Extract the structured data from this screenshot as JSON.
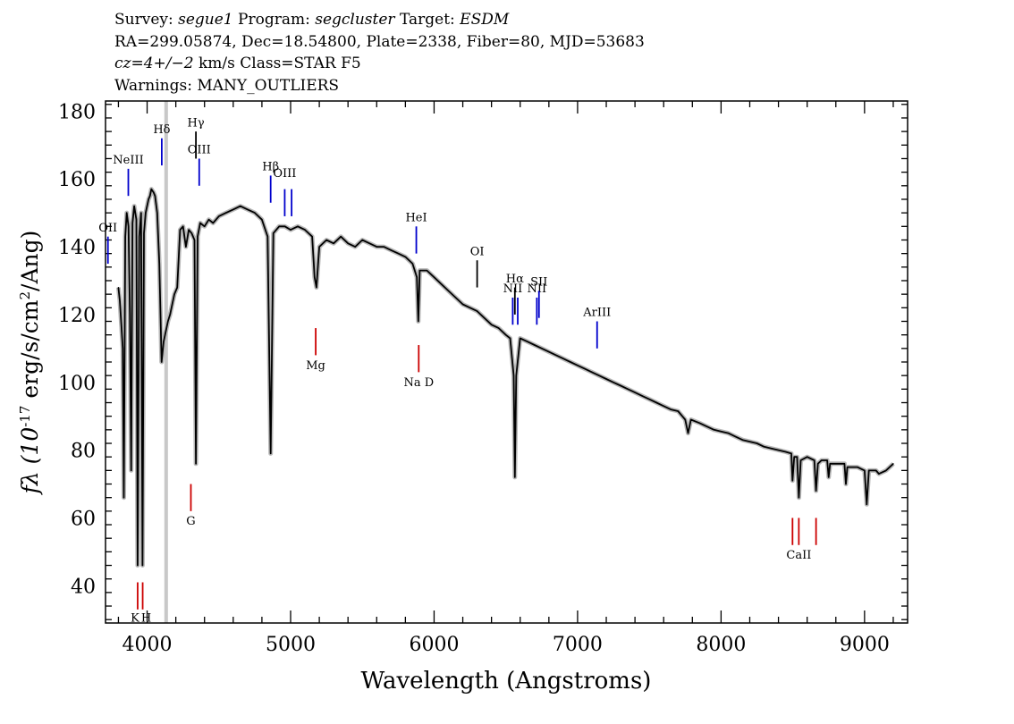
{
  "header": {
    "survey_label": "Survey: ",
    "survey": "segue1",
    "program_label": " Program: ",
    "program": "segcluster",
    "target_label": " Target: ",
    "target": "ESDM",
    "line2": "RA=299.05874, Dec=18.54800, Plate=2338, Fiber=80, MJD=53683",
    "cz_value": "cz=4+/−2",
    "cz_rest": " km/s Class=STAR F5",
    "warnings": "Warnings: MANY_OUTLIERS"
  },
  "chart_data": {
    "type": "line",
    "title": "",
    "xlabel": "Wavelength (Angstroms)",
    "ylabel": "fλ (10⁻¹⁷ erg/s/cm²/Ang)",
    "xlim": [
      3710,
      9300
    ],
    "ylim": [
      29,
      183
    ],
    "xticks": [
      4000,
      5000,
      6000,
      7000,
      8000,
      9000
    ],
    "yticks": [
      40,
      60,
      80,
      100,
      120,
      140,
      160,
      180
    ],
    "grid": false,
    "series": [
      {
        "color": "#000000",
        "points": [
          [
            3800,
            128
          ],
          [
            3810,
            124
          ],
          [
            3820,
            117
          ],
          [
            3830,
            110
          ],
          [
            3838,
            66
          ],
          [
            3848,
            143
          ],
          [
            3858,
            150
          ],
          [
            3870,
            146
          ],
          [
            3880,
            120
          ],
          [
            3889,
            74
          ],
          [
            3898,
            147
          ],
          [
            3910,
            152
          ],
          [
            3925,
            148
          ],
          [
            3934,
            46
          ],
          [
            3945,
            143
          ],
          [
            3958,
            150
          ],
          [
            3968,
            46
          ],
          [
            3978,
            144
          ],
          [
            3990,
            150
          ],
          [
            4000,
            152
          ],
          [
            4010,
            154
          ],
          [
            4020,
            155
          ],
          [
            4030,
            157
          ],
          [
            4045,
            156
          ],
          [
            4055,
            155
          ],
          [
            4070,
            150
          ],
          [
            4085,
            135
          ],
          [
            4101,
            106
          ],
          [
            4115,
            112
          ],
          [
            4130,
            115
          ],
          [
            4145,
            118
          ],
          [
            4160,
            120
          ],
          [
            4175,
            123
          ],
          [
            4190,
            126
          ],
          [
            4210,
            128
          ],
          [
            4230,
            145
          ],
          [
            4250,
            146
          ],
          [
            4270,
            140
          ],
          [
            4290,
            145
          ],
          [
            4310,
            144
          ],
          [
            4330,
            142
          ],
          [
            4340,
            76
          ],
          [
            4352,
            143
          ],
          [
            4370,
            147
          ],
          [
            4400,
            146
          ],
          [
            4430,
            148
          ],
          [
            4460,
            147
          ],
          [
            4500,
            149
          ],
          [
            4550,
            150
          ],
          [
            4600,
            151
          ],
          [
            4650,
            152
          ],
          [
            4700,
            151
          ],
          [
            4750,
            150
          ],
          [
            4800,
            148
          ],
          [
            4840,
            143
          ],
          [
            4861,
            79
          ],
          [
            4880,
            144
          ],
          [
            4920,
            146
          ],
          [
            4960,
            146
          ],
          [
            5000,
            145
          ],
          [
            5050,
            146
          ],
          [
            5100,
            145
          ],
          [
            5150,
            143
          ],
          [
            5167,
            131
          ],
          [
            5180,
            128
          ],
          [
            5200,
            140
          ],
          [
            5250,
            142
          ],
          [
            5300,
            141
          ],
          [
            5350,
            143
          ],
          [
            5400,
            141
          ],
          [
            5450,
            140
          ],
          [
            5500,
            142
          ],
          [
            5550,
            141
          ],
          [
            5600,
            140
          ],
          [
            5650,
            140
          ],
          [
            5700,
            139
          ],
          [
            5750,
            138
          ],
          [
            5800,
            137
          ],
          [
            5850,
            135
          ],
          [
            5880,
            131
          ],
          [
            5890,
            118
          ],
          [
            5900,
            133
          ],
          [
            5950,
            133
          ],
          [
            6000,
            131
          ],
          [
            6050,
            129
          ],
          [
            6100,
            127
          ],
          [
            6150,
            125
          ],
          [
            6200,
            123
          ],
          [
            6250,
            122
          ],
          [
            6300,
            121
          ],
          [
            6350,
            119
          ],
          [
            6400,
            117
          ],
          [
            6450,
            116
          ],
          [
            6500,
            114
          ],
          [
            6530,
            113
          ],
          [
            6555,
            102
          ],
          [
            6563,
            72
          ],
          [
            6572,
            102
          ],
          [
            6600,
            113
          ],
          [
            6650,
            112
          ],
          [
            6700,
            111
          ],
          [
            6750,
            110
          ],
          [
            6800,
            109
          ],
          [
            6850,
            108
          ],
          [
            6900,
            107
          ],
          [
            6950,
            106
          ],
          [
            7000,
            105
          ],
          [
            7050,
            104
          ],
          [
            7100,
            103
          ],
          [
            7150,
            102
          ],
          [
            7200,
            101
          ],
          [
            7250,
            100
          ],
          [
            7300,
            99
          ],
          [
            7350,
            98
          ],
          [
            7400,
            97
          ],
          [
            7450,
            96
          ],
          [
            7500,
            95
          ],
          [
            7550,
            94
          ],
          [
            7600,
            93
          ],
          [
            7650,
            92
          ],
          [
            7700,
            91.5
          ],
          [
            7750,
            89
          ],
          [
            7770,
            85
          ],
          [
            7790,
            89
          ],
          [
            7850,
            88
          ],
          [
            7900,
            87
          ],
          [
            7950,
            86
          ],
          [
            8000,
            85.5
          ],
          [
            8050,
            85
          ],
          [
            8100,
            84
          ],
          [
            8150,
            83
          ],
          [
            8200,
            82.5
          ],
          [
            8250,
            82
          ],
          [
            8300,
            81
          ],
          [
            8350,
            80.5
          ],
          [
            8400,
            80
          ],
          [
            8450,
            79.5
          ],
          [
            8490,
            79
          ],
          [
            8498,
            71
          ],
          [
            8510,
            78
          ],
          [
            8530,
            78
          ],
          [
            8542,
            66
          ],
          [
            8555,
            77
          ],
          [
            8600,
            78
          ],
          [
            8650,
            77
          ],
          [
            8662,
            68
          ],
          [
            8675,
            76
          ],
          [
            8700,
            77
          ],
          [
            8740,
            77
          ],
          [
            8750,
            72
          ],
          [
            8760,
            76
          ],
          [
            8800,
            76
          ],
          [
            8860,
            76
          ],
          [
            8870,
            70
          ],
          [
            8880,
            75
          ],
          [
            8950,
            75
          ],
          [
            9000,
            74
          ],
          [
            9015,
            64
          ],
          [
            9030,
            74
          ],
          [
            9080,
            74
          ],
          [
            9100,
            73
          ],
          [
            9150,
            74
          ],
          [
            9200,
            76
          ]
        ]
      }
    ],
    "lines": [
      {
        "label": "OII",
        "color": "#0000cc",
        "wave": 3727,
        "y_top": 143,
        "y_bottom": 135,
        "label_y": 144
      },
      {
        "label": "NeIII",
        "color": "#0000cc",
        "wave": 3869,
        "y_top": 163,
        "y_bottom": 155,
        "label_y": 164
      },
      {
        "label": "Hδ",
        "color": "#0000cc",
        "wave": 4102,
        "y_top": 172,
        "y_bottom": 164,
        "label_y": 173
      },
      {
        "label": "Hγ",
        "color": "#000000",
        "wave": 4340,
        "y_top": 174,
        "y_bottom": 166,
        "label_y": 175
      },
      {
        "label": "OIII",
        "color": "#0000cc",
        "wave": 4363,
        "y_top": 166,
        "y_bottom": 158,
        "label_y": 167
      },
      {
        "label": "Hβ",
        "color": "#0000cc",
        "wave": 4861,
        "y_top": 161,
        "y_bottom": 153,
        "label_y": 162
      },
      {
        "label": "OIII",
        "color": "#0000cc",
        "wave": 4959,
        "y_top": 157,
        "y_bottom": 149,
        "label_y": 160
      },
      {
        "label": "",
        "color": "#0000cc",
        "wave": 5007,
        "y_top": 157,
        "y_bottom": 149,
        "label_y": 0
      },
      {
        "label": "HeI",
        "color": "#0000cc",
        "wave": 5876,
        "y_top": 146,
        "y_bottom": 138,
        "label_y": 147
      },
      {
        "label": "OI",
        "color": "#000000",
        "wave": 6300,
        "y_top": 136,
        "y_bottom": 128,
        "label_y": 137
      },
      {
        "label": "NII",
        "color": "#0000cc",
        "wave": 6548,
        "y_top": 125,
        "y_bottom": 117,
        "label_y": 126
      },
      {
        "label": "Hα",
        "color": "#000000",
        "wave": 6563,
        "y_top": 128,
        "y_bottom": 120,
        "label_y": 129
      },
      {
        "label": "NII",
        "color": "#0000cc",
        "wave": 6583,
        "y_top": 125,
        "y_bottom": 117,
        "label_y": 0
      },
      {
        "label": "NII",
        "color": "#0000cc",
        "wave": 6716,
        "y_top": 125,
        "y_bottom": 117,
        "label_y": 126
      },
      {
        "label": "SII",
        "color": "#0000cc",
        "wave": 6731,
        "y_top": 127,
        "y_bottom": 119,
        "label_y": 128
      },
      {
        "label": "ArIII",
        "color": "#0000cc",
        "wave": 7136,
        "y_top": 118,
        "y_bottom": 110,
        "label_y": 119
      },
      {
        "label": "K",
        "color": "#cc0000",
        "wave": 3934,
        "y_top": 41,
        "y_bottom": 33,
        "label_y": 0
      },
      {
        "label": "H",
        "color": "#cc0000",
        "wave": 3969,
        "y_top": 41,
        "y_bottom": 33,
        "label_y": 0
      },
      {
        "label": "G",
        "color": "#cc0000",
        "wave": 4305,
        "y_top": 70,
        "y_bottom": 62,
        "label_y": 0
      },
      {
        "label": "Mg",
        "color": "#cc0000",
        "wave": 5175,
        "y_top": 116,
        "y_bottom": 108,
        "label_y": 0
      },
      {
        "label": "Na D",
        "color": "#cc0000",
        "wave": 5893,
        "y_top": 111,
        "y_bottom": 103,
        "label_y": 0
      },
      {
        "label": "",
        "color": "#cc0000",
        "wave": 8498,
        "y_top": 60,
        "y_bottom": 52,
        "label_y": 0
      },
      {
        "label": "",
        "color": "#cc0000",
        "wave": 8542,
        "y_top": 60,
        "y_bottom": 52,
        "label_y": 0
      },
      {
        "label": "",
        "color": "#cc0000",
        "wave": 8662,
        "y_top": 60,
        "y_bottom": 52,
        "label_y": 0
      }
    ],
    "absorption_labels": [
      {
        "label": "K",
        "wave": 3934,
        "y": 30.5
      },
      {
        "label": "H",
        "wave": 3969,
        "y": 30.5
      },
      {
        "label": "G",
        "wave": 4305,
        "y": 59
      },
      {
        "label": "Mg",
        "wave": 5175,
        "y": 105
      },
      {
        "label": "Na D",
        "wave": 5893,
        "y": 100
      },
      {
        "label": "CaII",
        "wave": 8542,
        "y": 49
      }
    ],
    "masked_region": [
      4120,
      4145
    ]
  }
}
